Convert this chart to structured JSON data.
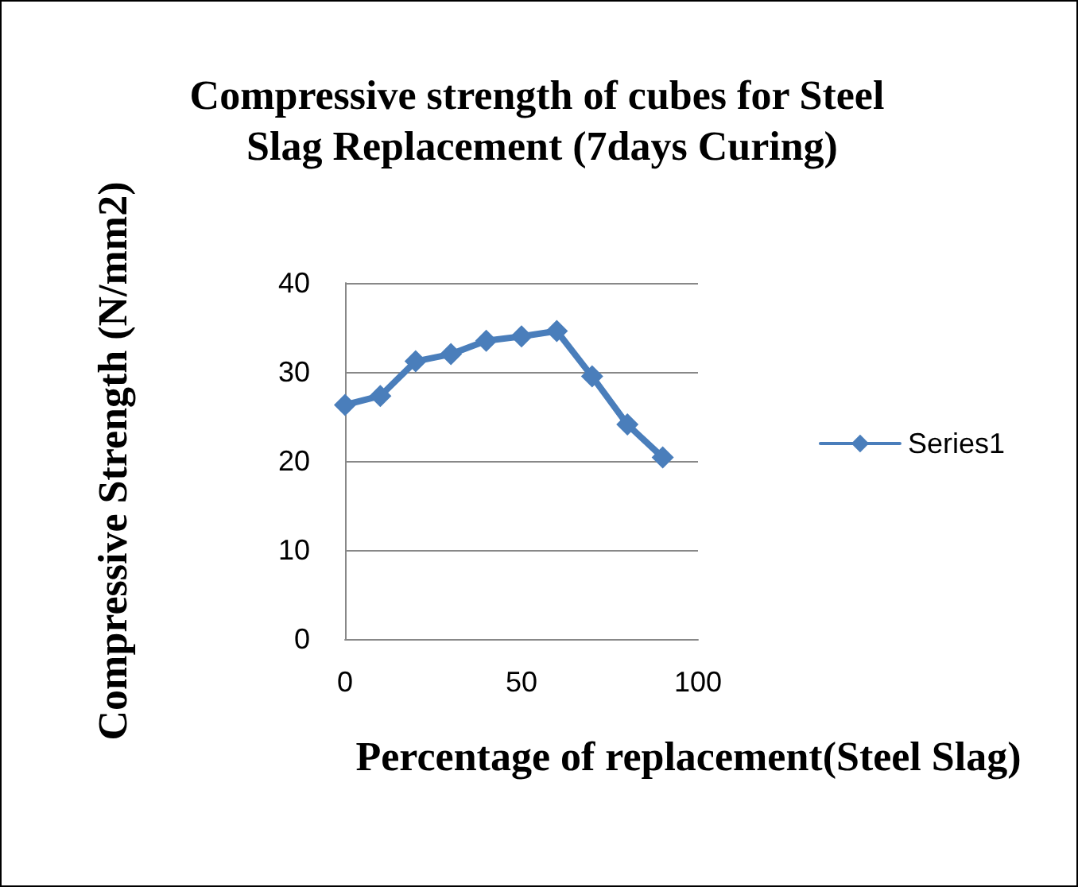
{
  "chart_data": {
    "type": "line",
    "title": "Compressive strength of cubes for Steel Slag Replacement (7days Curing)",
    "xlabel": "Percentage of replacement(Steel Slag)",
    "ylabel": "Compressive Strength (N/mm2)",
    "x": [
      0,
      10,
      20,
      30,
      40,
      50,
      60,
      70,
      80,
      90
    ],
    "series": [
      {
        "name": "Series1",
        "color": "#4a7ebb",
        "values": [
          26.3,
          27.3,
          31.2,
          32.0,
          33.5,
          34.0,
          34.6,
          29.5,
          24.1,
          20.4
        ]
      }
    ],
    "xlim": [
      0,
      100
    ],
    "xticks": [
      0,
      50,
      100
    ],
    "ylim": [
      0,
      40
    ],
    "yticks": [
      0,
      10,
      20,
      30,
      40
    ],
    "grid": "y",
    "legend": "right",
    "marker": "diamond",
    "line_style": "solid"
  }
}
